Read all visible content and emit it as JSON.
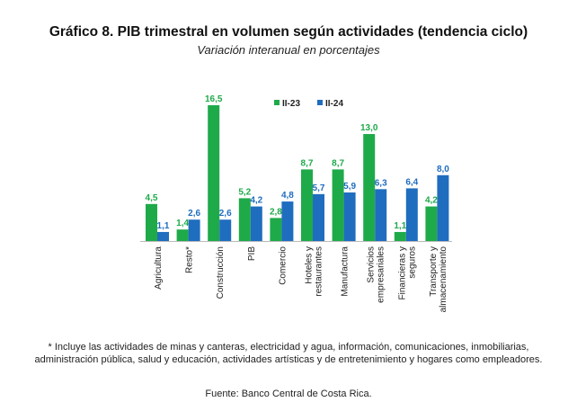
{
  "title": "Gráfico 8. PIB trimestral en volumen según actividades (tendencia ciclo)",
  "subtitle": "Variación interanual en porcentajes",
  "note": "* Incluye las actividades de minas y canteras, electricidad y agua, información, comunicaciones, inmobiliarias, administración pública, salud y educación, actividades artísticas y de entretenimiento y hogares como empleadores.",
  "source": "Fuente: Banco Central de Costa Rica.",
  "chart_data": {
    "type": "bar",
    "title": "Gráfico 8. PIB trimestral en volumen según actividades (tendencia ciclo)",
    "subtitle": "Variación interanual en porcentajes",
    "categories": [
      [
        "Agricultura"
      ],
      [
        "Resto*"
      ],
      [
        "Construcción"
      ],
      [
        "PIB"
      ],
      [
        "Comercio"
      ],
      [
        "Hoteles y",
        "restaurantes"
      ],
      [
        "Manufactura"
      ],
      [
        "Servicios",
        "empresariales"
      ],
      [
        "Financieras y",
        "seguros"
      ],
      [
        "Transporte y",
        "almacenamiento"
      ]
    ],
    "series": [
      {
        "name": "II-23",
        "color": "#1faa4a",
        "values": [
          4.5,
          1.4,
          16.5,
          5.2,
          2.8,
          8.7,
          8.7,
          13.0,
          1.1,
          4.2
        ],
        "labels": [
          "4,5",
          "1,4",
          "16,5",
          "5,2",
          "2,8",
          "8,7",
          "8,7",
          "13,0",
          "1,1",
          "4,2"
        ]
      },
      {
        "name": "II-24",
        "color": "#1f6dbf",
        "values": [
          1.1,
          2.6,
          2.6,
          4.2,
          4.8,
          5.7,
          5.9,
          6.3,
          6.4,
          8.0
        ],
        "labels": [
          "1,1",
          "2,6",
          "2,6",
          "4,2",
          "4,8",
          "5,7",
          "5,9",
          "6,3",
          "6,4",
          "8,0"
        ]
      }
    ],
    "ylim": [
      0,
      16.5
    ],
    "grid": false,
    "legend": "top-center"
  }
}
